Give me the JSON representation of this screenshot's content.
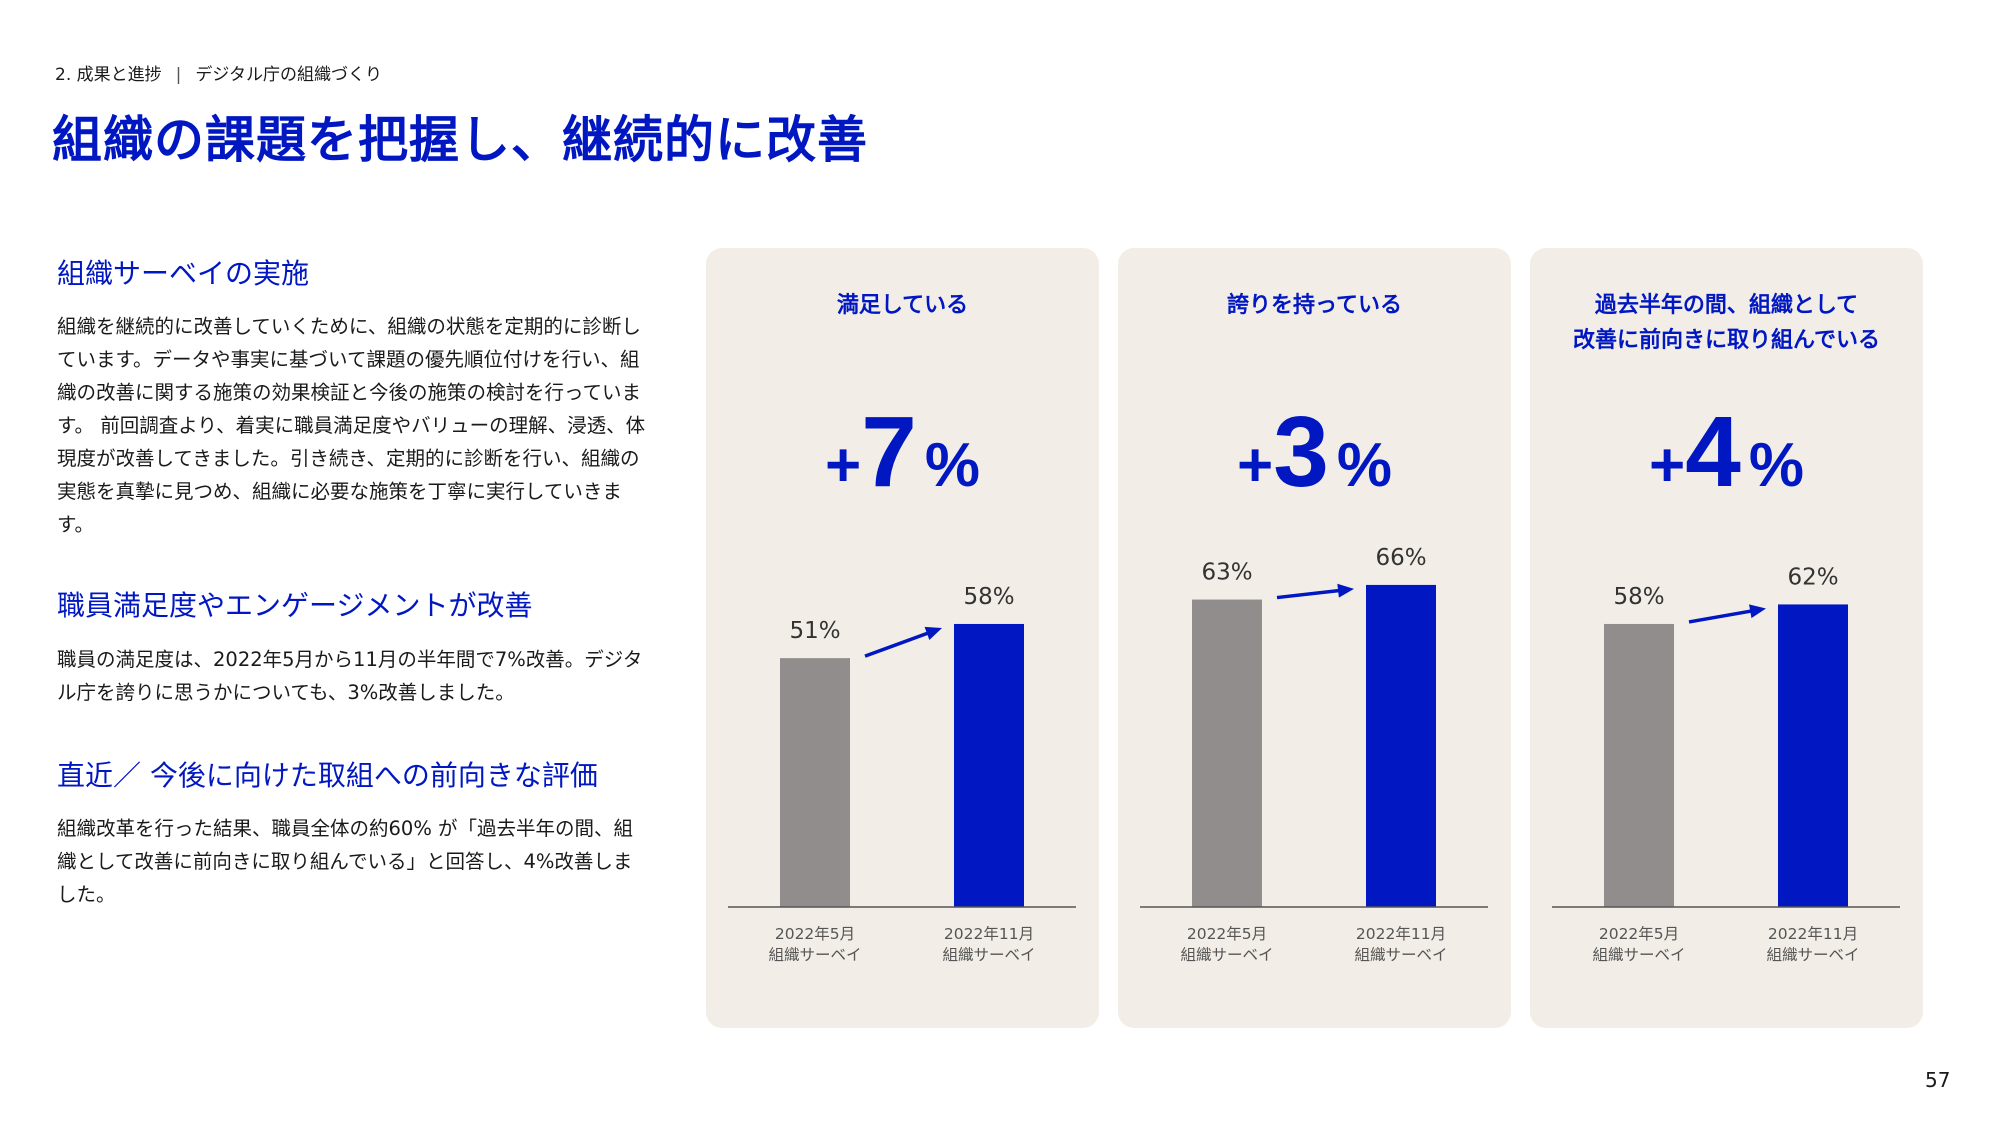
{
  "header": {
    "breadcrumb_section": "2. 成果と進捗",
    "breadcrumb_separator": "|",
    "breadcrumb_page": "デジタル庁の組織づくり",
    "title": "組織の課題を把握し、継続的に改善"
  },
  "sections": [
    {
      "heading": "組織サーベイの実施",
      "body": "組織を継続的に改善していくために、組織の状態を定期的に診断しています。データや事実に基づいて課題の優先順位付けを行い、組織の改善に関する施策の効果検証と今後の施策の検討を行っています。 前回調査より、着実に職員満足度やバリューの理解、浸透、体現度が改善してきました。引き続き、定期的に診断を行い、組織の実態を真摯に見つめ、組織に必要な施策を丁寧に実行していきます。"
    },
    {
      "heading": "職員満足度やエンゲージメントが改善",
      "body": "職員の満足度は、2022年5月から11月の半年間で7%改善。デジタル庁を誇りに思うかについても、3%改善しました。"
    },
    {
      "heading": "直近／ 今後に向けた取組への前向きな評価",
      "body": "組織改革を行った結果、職員全体の約60% が「過去半年の間、組織として改善に前向きに取り組んでいる」と回答し、4%改善しました。"
    }
  ],
  "colors": {
    "accent": "#0017c1",
    "previous_bar": "#918d8c",
    "card_bg": "#f2eee7"
  },
  "chart_data": [
    {
      "type": "bar",
      "title": [
        "満足している"
      ],
      "change": {
        "sign": "+",
        "value": "7",
        "unit": "%"
      },
      "categories": [
        [
          "2022年5月",
          "組織サーベイ"
        ],
        [
          "2022年11月",
          "組織サーベイ"
        ]
      ],
      "values": [
        51,
        58
      ],
      "data_labels": [
        "51%",
        "58%"
      ],
      "colors": [
        "#918d8c",
        "#0017c1"
      ],
      "arrow": "up-right"
    },
    {
      "type": "bar",
      "title": [
        "誇りを持っている"
      ],
      "change": {
        "sign": "+",
        "value": "3",
        "unit": "%"
      },
      "categories": [
        [
          "2022年5月",
          "組織サーベイ"
        ],
        [
          "2022年11月",
          "組織サーベイ"
        ]
      ],
      "values": [
        63,
        66
      ],
      "data_labels": [
        "63%",
        "66%"
      ],
      "colors": [
        "#918d8c",
        "#0017c1"
      ],
      "arrow": "up-right"
    },
    {
      "type": "bar",
      "title": [
        "過去半年の間、組織として",
        "改善に前向きに取り組んでいる"
      ],
      "change": {
        "sign": "+",
        "value": "4",
        "unit": "%"
      },
      "categories": [
        [
          "2022年5月",
          "組織サーベイ"
        ],
        [
          "2022年11月",
          "組織サーベイ"
        ]
      ],
      "values": [
        58,
        62
      ],
      "data_labels": [
        "58%",
        "62%"
      ],
      "colors": [
        "#918d8c",
        "#0017c1"
      ],
      "arrow": "up-right"
    }
  ],
  "page_number": "57"
}
